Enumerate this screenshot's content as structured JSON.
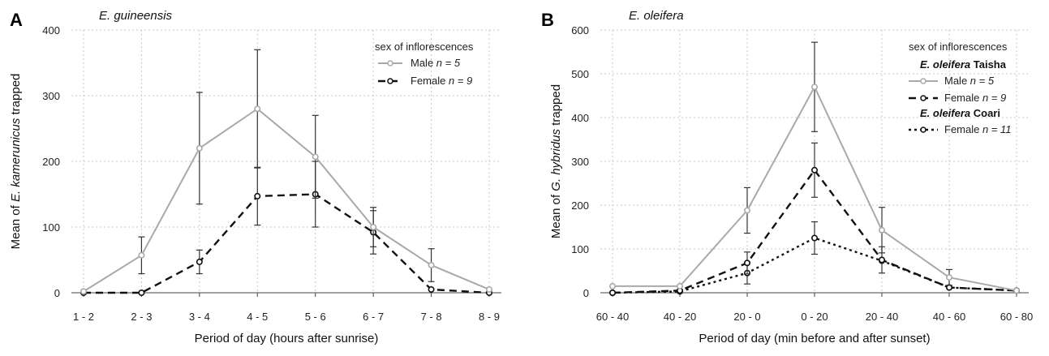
{
  "colors": {
    "male": "#a9a9a9",
    "female": "#111111",
    "grid": "#c8c8c8",
    "error": "#333333"
  },
  "chart_data": [
    {
      "type": "line",
      "panel_letter": "A",
      "title": "E. guineensis",
      "xlabel": "Period of day (hours after sunrise)",
      "ylabel_prefix": "Mean of ",
      "ylabel_species": "E. kamerunicus",
      "ylabel_suffix": " trapped",
      "ylim": [
        0,
        400
      ],
      "yticks": [
        "0",
        "100",
        "200",
        "300",
        "400"
      ],
      "categories": [
        "1 - 2",
        "2 - 3",
        "3 - 4",
        "4 - 5",
        "5 - 6",
        "6 - 7",
        "7 - 8",
        "8 - 9"
      ],
      "grid": true,
      "legend_position": "top-right",
      "legend_title": "sex of inflorescences",
      "legend_groups": [],
      "series": [
        {
          "key": "male",
          "label_text": "Male ",
          "label_n": "n = 5",
          "values": [
            2,
            57,
            220,
            280,
            207,
            100,
            42,
            5
          ],
          "err": [
            0,
            28,
            85,
            90,
            63,
            30,
            25,
            0
          ]
        },
        {
          "key": "female",
          "label_text": "Female ",
          "label_n": "n = 9",
          "values": [
            0,
            0,
            47,
            147,
            150,
            92,
            5,
            0
          ],
          "err": [
            0,
            0,
            18,
            44,
            50,
            33,
            0,
            0
          ]
        }
      ]
    },
    {
      "type": "line",
      "panel_letter": "B",
      "title": "E. oleifera",
      "xlabel": "Period of day (min before and after sunset)",
      "ylabel_prefix": "Mean of ",
      "ylabel_species": "G. hybridus",
      "ylabel_suffix": " trapped",
      "ylim": [
        0,
        600
      ],
      "yticks": [
        "0",
        "100",
        "200",
        "300",
        "400",
        "500",
        "600"
      ],
      "categories": [
        "60 - 40",
        "40 - 20",
        "20 - 0",
        "0 - 20",
        "20 - 40",
        "40 - 60",
        "60 - 80"
      ],
      "grid": true,
      "legend_position": "top-right",
      "legend_title": "sex of inflorescences",
      "legend_groups": [
        {
          "species": "E. oleifera",
          "site": " Taisha"
        },
        {
          "species": "E. oleifera",
          "site": " Coari"
        }
      ],
      "series": [
        {
          "key": "male",
          "label_text": "Male ",
          "label_n": "n = 5",
          "values": [
            15,
            15,
            188,
            470,
            143,
            35,
            5
          ],
          "err": [
            0,
            0,
            52,
            102,
            52,
            18,
            0
          ]
        },
        {
          "key": "female",
          "label_text": "Female ",
          "label_n": "n = 9",
          "values": [
            0,
            5,
            68,
            280,
            75,
            12,
            5
          ],
          "err": [
            0,
            0,
            25,
            62,
            30,
            0,
            0
          ]
        },
        {
          "key": "female_dotted",
          "label_text": "Female ",
          "label_n": "n = 11",
          "values": [
            0,
            3,
            45,
            125,
            73,
            12,
            5
          ],
          "err": [
            0,
            0,
            25,
            37,
            0,
            0,
            0
          ]
        }
      ]
    }
  ]
}
